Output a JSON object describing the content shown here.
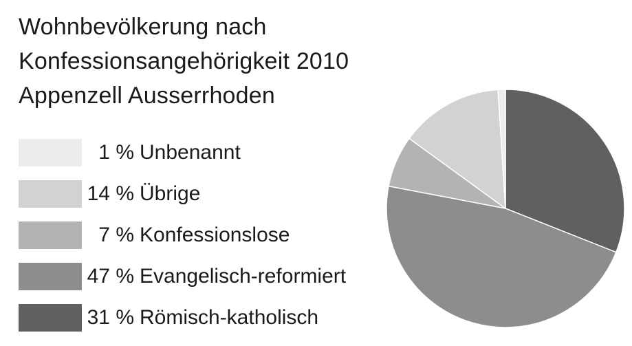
{
  "title_lines": [
    "Wohnbevölkerung nach",
    "Konfessionsangehörigkeit 2010",
    "Appenzell Ausserrhoden"
  ],
  "chart_data": {
    "type": "pie",
    "title": "Wohnbevölkerung nach Konfessionsangehörigkeit 2010 Appenzell Ausserrhoden",
    "unit": "%",
    "legend_position": "left",
    "slices": [
      {
        "label": "Unbenannt",
        "value": 1,
        "value_label": "1 %",
        "color": "#ececec"
      },
      {
        "label": "Übrige",
        "value": 14,
        "value_label": "14 %",
        "color": "#d2d2d2"
      },
      {
        "label": "Konfessionslose",
        "value": 7,
        "value_label": "7 %",
        "color": "#b3b3b3"
      },
      {
        "label": "Evangelisch-reformiert",
        "value": 47,
        "value_label": "47 %",
        "color": "#8d8d8d"
      },
      {
        "label": "Römisch-katholisch",
        "value": 31,
        "value_label": "31 %",
        "color": "#606060"
      }
    ],
    "pie_order": [
      "Römisch-katholisch",
      "Evangelisch-reformiert",
      "Konfessionslose",
      "Übrige",
      "Unbenannt"
    ]
  }
}
